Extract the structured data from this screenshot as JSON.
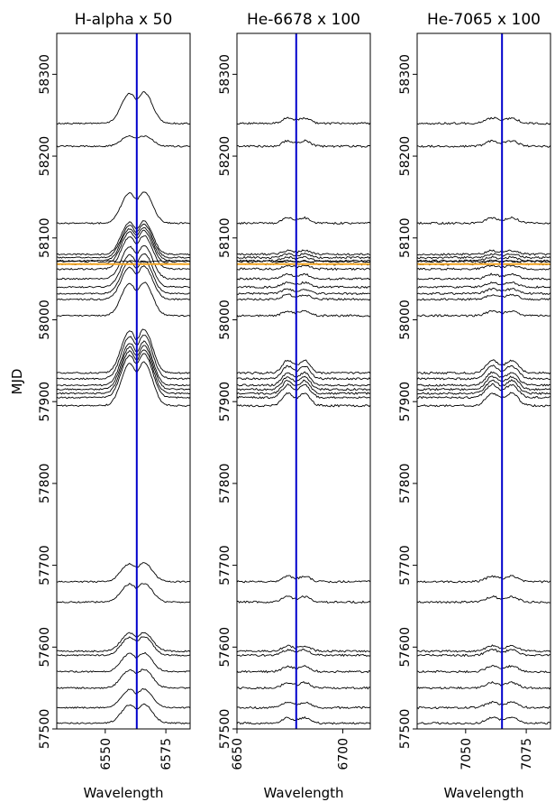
{
  "chart_data": {
    "type": "line",
    "shared": {
      "ylabel": "MJD",
      "xlabel": "Wavelength",
      "ylim": [
        57500,
        58350
      ],
      "yticks": [
        57500,
        57600,
        57700,
        57800,
        57900,
        58000,
        58100,
        58200,
        58300
      ],
      "observation_mjd": [
        57507,
        57526,
        57550,
        57570,
        57590,
        57595,
        57655,
        57680,
        57895,
        57905,
        57910,
        57915,
        57920,
        57928,
        57935,
        58005,
        58025,
        58032,
        58040,
        58050,
        58062,
        58068,
        58072,
        58076,
        58080,
        58118,
        58212,
        58240
      ],
      "highlight_mjd": 58068,
      "highlight_color": "#f5a623",
      "spectra_color": "#000000",
      "marker_color": "#0000cc"
    },
    "panels": [
      {
        "title": "H-alpha x 50",
        "xlim": [
          6530,
          6585
        ],
        "xticks": [
          6550,
          6575
        ],
        "rest_wavelength": 6563,
        "scale": 50,
        "profile": "halpha"
      },
      {
        "title": "He-6678 x 100",
        "xlim": [
          6650,
          6713
        ],
        "xticks": [
          6650,
          6700
        ],
        "rest_wavelength": 6678,
        "scale": 100,
        "profile": "helium"
      },
      {
        "title": "He-7065 x 100",
        "xlim": [
          7030,
          7085
        ],
        "xticks": [
          7050,
          7075
        ],
        "rest_wavelength": 7065,
        "scale": 100,
        "profile": "helium"
      }
    ]
  }
}
